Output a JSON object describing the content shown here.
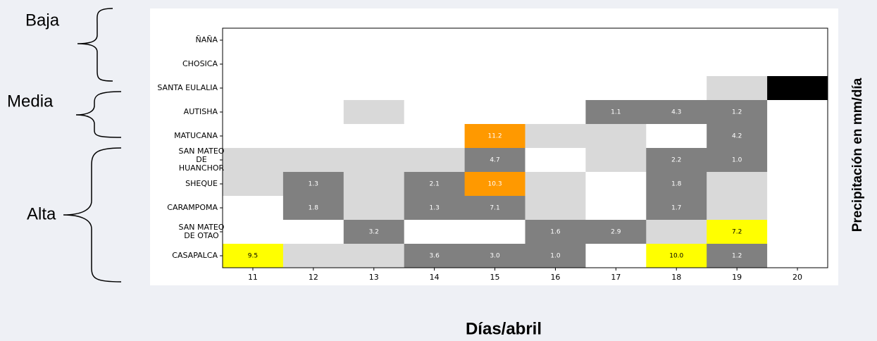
{
  "chart_data": {
    "type": "heatmap",
    "x_label": "Días/abril",
    "y2_label": "Precipitación en mm/día",
    "annotations": [
      "Baja",
      "Media",
      "Alta"
    ],
    "categories": [
      11,
      12,
      13,
      14,
      15,
      16,
      17,
      18,
      19,
      20
    ],
    "rows": [
      [
        "ÑAÑA"
      ],
      [
        "CHOSICA"
      ],
      [
        "SANTA EULALIA"
      ],
      [
        "AUTISHA"
      ],
      [
        "MATUCANA"
      ],
      [
        "SAN MATEO",
        "DE",
        "HUANCHOR"
      ],
      [
        "SHEQUE"
      ],
      [
        "CARAMPOMA"
      ],
      [
        "SAN MATEO",
        "DE OTAO"
      ],
      [
        "CASAPALCA"
      ]
    ],
    "values": [
      [
        null,
        null,
        null,
        null,
        null,
        null,
        null,
        null,
        null,
        null
      ],
      [
        null,
        null,
        null,
        null,
        null,
        null,
        null,
        null,
        null,
        null
      ],
      [
        null,
        null,
        null,
        null,
        null,
        null,
        null,
        null,
        null,
        null
      ],
      [
        null,
        null,
        null,
        null,
        null,
        null,
        1.1,
        4.3,
        1.2,
        null
      ],
      [
        null,
        null,
        null,
        null,
        11.2,
        null,
        null,
        null,
        4.2,
        null
      ],
      [
        null,
        null,
        null,
        null,
        4.7,
        null,
        null,
        2.2,
        1.0,
        null
      ],
      [
        null,
        1.3,
        null,
        2.1,
        10.3,
        null,
        null,
        1.8,
        null,
        null
      ],
      [
        null,
        1.8,
        null,
        1.3,
        7.1,
        null,
        null,
        1.7,
        null,
        null
      ],
      [
        null,
        null,
        3.2,
        null,
        null,
        1.6,
        2.9,
        null,
        7.2,
        null
      ],
      [
        9.5,
        null,
        null,
        3.6,
        3.0,
        1.0,
        null,
        10.0,
        1.2,
        null
      ]
    ],
    "value_labels": [
      [
        null,
        null,
        null,
        null,
        null,
        null,
        null,
        null,
        null,
        null
      ],
      [
        null,
        null,
        null,
        null,
        null,
        null,
        null,
        null,
        null,
        null
      ],
      [
        null,
        null,
        null,
        null,
        null,
        null,
        null,
        null,
        null,
        null
      ],
      [
        null,
        null,
        null,
        null,
        null,
        null,
        "1.1",
        "4.3",
        "1.2",
        null
      ],
      [
        null,
        null,
        null,
        null,
        "11.2",
        null,
        null,
        null,
        "4.2",
        null
      ],
      [
        null,
        null,
        null,
        null,
        "4.7",
        null,
        null,
        "2.2",
        "1.0",
        null
      ],
      [
        null,
        "1.3",
        null,
        "2.1",
        "10.3",
        null,
        null,
        "1.8",
        null,
        null
      ],
      [
        null,
        "1.8",
        null,
        "1.3",
        "7.1",
        null,
        null,
        "1.7",
        null,
        null
      ],
      [
        null,
        null,
        "3.2",
        null,
        null,
        "1.6",
        "2.9",
        null,
        "7.2",
        null
      ],
      [
        "9.5",
        null,
        null,
        "3.6",
        "3.0",
        "1.0",
        null,
        "10.0",
        "1.2",
        null
      ]
    ],
    "colors": [
      [
        "#ffffff",
        "#ffffff",
        "#ffffff",
        "#ffffff",
        "#ffffff",
        "#ffffff",
        "#ffffff",
        "#ffffff",
        "#ffffff",
        "#ffffff"
      ],
      [
        "#ffffff",
        "#ffffff",
        "#ffffff",
        "#ffffff",
        "#ffffff",
        "#ffffff",
        "#ffffff",
        "#ffffff",
        "#ffffff",
        "#ffffff"
      ],
      [
        "#ffffff",
        "#ffffff",
        "#ffffff",
        "#ffffff",
        "#ffffff",
        "#ffffff",
        "#ffffff",
        "#ffffff",
        "#d9d9d9",
        "#000000"
      ],
      [
        "#ffffff",
        "#ffffff",
        "#d9d9d9",
        "#ffffff",
        "#ffffff",
        "#ffffff",
        "#808080",
        "#808080",
        "#808080",
        "#ffffff"
      ],
      [
        "#ffffff",
        "#ffffff",
        "#ffffff",
        "#ffffff",
        "#ff9900",
        "#d9d9d9",
        "#d9d9d9",
        "#ffffff",
        "#808080",
        "#ffffff"
      ],
      [
        "#d9d9d9",
        "#d9d9d9",
        "#d9d9d9",
        "#d9d9d9",
        "#808080",
        "#ffffff",
        "#d9d9d9",
        "#808080",
        "#808080",
        "#ffffff"
      ],
      [
        "#d9d9d9",
        "#808080",
        "#d9d9d9",
        "#808080",
        "#ff9900",
        "#d9d9d9",
        "#ffffff",
        "#808080",
        "#d9d9d9",
        "#ffffff"
      ],
      [
        "#ffffff",
        "#808080",
        "#d9d9d9",
        "#808080",
        "#808080",
        "#d9d9d9",
        "#ffffff",
        "#808080",
        "#d9d9d9",
        "#ffffff"
      ],
      [
        "#ffffff",
        "#ffffff",
        "#808080",
        "#ffffff",
        "#ffffff",
        "#808080",
        "#808080",
        "#d9d9d9",
        "#ffff00",
        "#ffffff"
      ],
      [
        "#ffff00",
        "#d9d9d9",
        "#d9d9d9",
        "#808080",
        "#808080",
        "#808080",
        "#ffffff",
        "#ffff00",
        "#808080",
        "#ffffff"
      ]
    ]
  }
}
